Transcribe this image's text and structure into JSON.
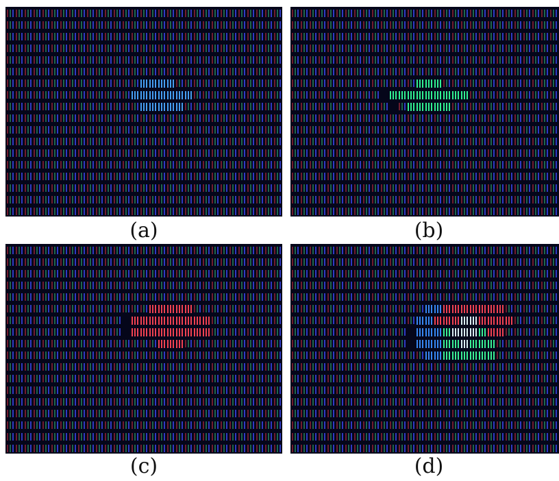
{
  "figure": {
    "panels": [
      {
        "id": "a",
        "caption": "(a)",
        "highlight": "blue",
        "highlight_color": "#3aa0ff"
      },
      {
        "id": "b",
        "caption": "(b)",
        "highlight": "green",
        "highlight_color": "#33ff99"
      },
      {
        "id": "c",
        "caption": "(c)",
        "highlight": "red",
        "highlight_color": "#ff3b4a"
      },
      {
        "id": "d",
        "caption": "(d)",
        "highlight": "mixed",
        "highlight_color": "#b8f0ff"
      }
    ],
    "subpixel_colors": {
      "red": "#c83040",
      "green": "#2ea870",
      "blue": "#3440d8",
      "background": "#05061a"
    }
  }
}
